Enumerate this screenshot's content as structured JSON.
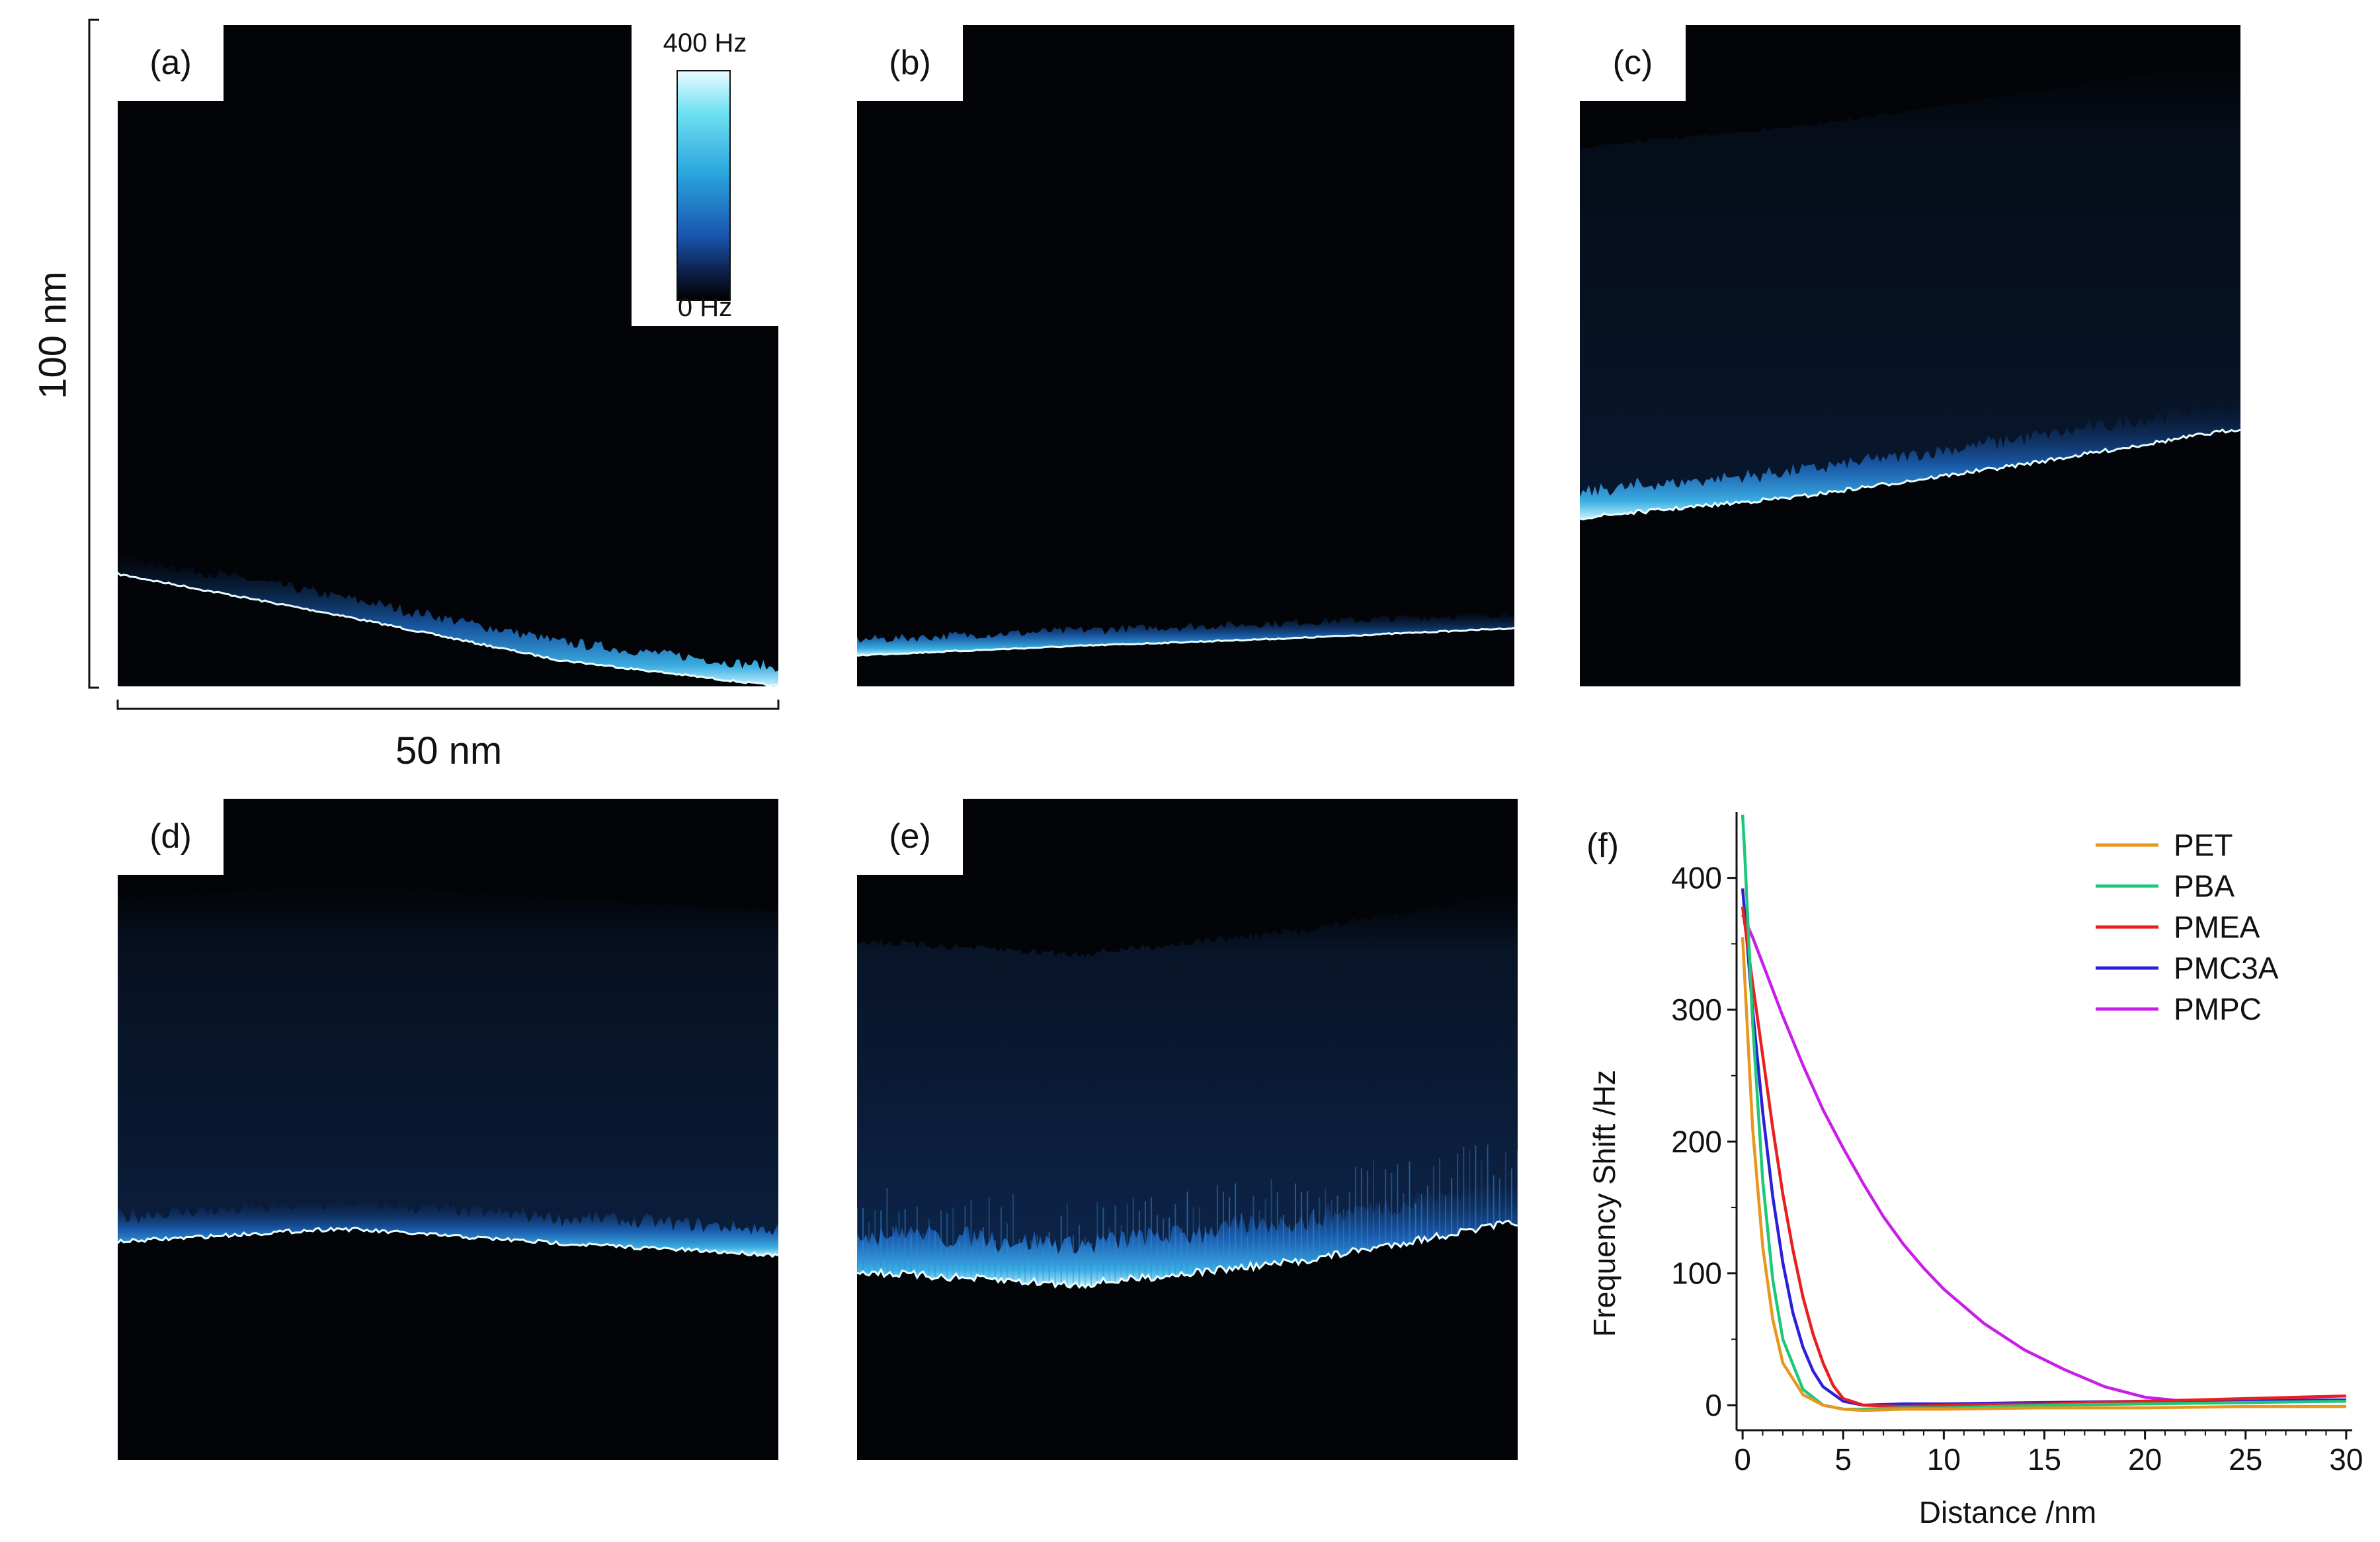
{
  "figure": {
    "panel_labels": [
      "(a)",
      "(b)",
      "(c)",
      "(d)",
      "(e)",
      "(f)"
    ],
    "colorbar": {
      "max_label": "400 Hz",
      "min_label": "0 Hz"
    },
    "scale_bars": {
      "horizontal": "50 nm",
      "vertical": "100 nm"
    }
  },
  "maps": [
    {
      "id": "a",
      "surface_profile": [
        0.83,
        0.892,
        0.96,
        1.0
      ],
      "layer_depth": 0.01,
      "layer_brightness": 0.0,
      "texture": 0.5
    },
    {
      "id": "b",
      "surface_profile": [
        0.953,
        0.939,
        0.927,
        0.912
      ],
      "layer_depth": 0.01,
      "layer_brightness": 0.0,
      "texture": 0.3
    },
    {
      "id": "c",
      "surface_profile": [
        0.745,
        0.713,
        0.665,
        0.61
      ],
      "layer_depth": 0.56,
      "layer_brightness": 0.1,
      "texture": 1.0
    },
    {
      "id": "d",
      "surface_profile": [
        0.67,
        0.65,
        0.672,
        0.69
      ],
      "layer_depth": 0.52,
      "layer_brightness": 0.14,
      "texture": 1.0
    },
    {
      "id": "e",
      "surface_profile": [
        0.715,
        0.735,
        0.7,
        0.64
      ],
      "layer_depth": 0.5,
      "layer_brightness": 0.18,
      "texture": 2.0
    }
  ],
  "chart_data": {
    "type": "line",
    "panel_label": "(f)",
    "xlabel": "Distance /nm",
    "ylabel": "Frequency Shift /Hz",
    "xlim": [
      -0.3,
      30.3
    ],
    "ylim": [
      -15,
      450
    ],
    "xticks": [
      0,
      5,
      10,
      15,
      20,
      25,
      30
    ],
    "yticks": [
      0,
      100,
      200,
      300,
      400
    ],
    "legend_position": "top-right",
    "series": [
      {
        "name": "PET",
        "color": "#e8961e",
        "x": [
          0,
          0.5,
          1,
          1.5,
          2,
          3,
          4,
          5,
          6,
          8,
          10,
          15,
          20,
          25,
          30
        ],
        "y": [
          355,
          210,
          120,
          65,
          32,
          8,
          0,
          -3,
          -4,
          -3,
          -3,
          -2,
          -2,
          -1,
          -1
        ]
      },
      {
        "name": "PBA",
        "color": "#1ec87a",
        "x": [
          0,
          0.1,
          0.5,
          1,
          1.5,
          2,
          3,
          4,
          5,
          6,
          8,
          10,
          15,
          20,
          25,
          30
        ],
        "y": [
          448,
          420,
          290,
          170,
          95,
          50,
          12,
          0,
          -3,
          -3,
          -2,
          -2,
          0,
          1,
          2,
          3
        ]
      },
      {
        "name": "PMEA",
        "color": "#e81f1f",
        "x": [
          0,
          0.5,
          1,
          1.5,
          2,
          2.5,
          3,
          3.5,
          4,
          4.5,
          5,
          6,
          8,
          10,
          15,
          20,
          25,
          30
        ],
        "y": [
          378,
          320,
          265,
          210,
          160,
          118,
          82,
          54,
          32,
          15,
          5,
          0,
          -1,
          0,
          1,
          3,
          5,
          7
        ]
      },
      {
        "name": "PMC3A",
        "color": "#2d1fd8",
        "x": [
          0,
          0.5,
          1,
          1.5,
          2,
          2.5,
          3,
          3.5,
          4,
          5,
          6,
          8,
          10,
          15,
          20,
          25,
          30
        ],
        "y": [
          392,
          300,
          222,
          158,
          108,
          70,
          44,
          26,
          14,
          3,
          0,
          1,
          1,
          2,
          3,
          3,
          4
        ]
      },
      {
        "name": "PMPC",
        "color": "#c81ee8",
        "x": [
          0,
          0.5,
          1,
          2,
          3,
          4,
          5,
          6,
          7,
          8,
          9,
          10,
          12,
          14,
          16,
          18,
          20,
          22,
          25,
          28,
          30
        ],
        "y": [
          372,
          355,
          335,
          295,
          258,
          224,
          195,
          168,
          143,
          122,
          104,
          88,
          62,
          42,
          27,
          14,
          6,
          3,
          3,
          4,
          4
        ]
      }
    ]
  }
}
